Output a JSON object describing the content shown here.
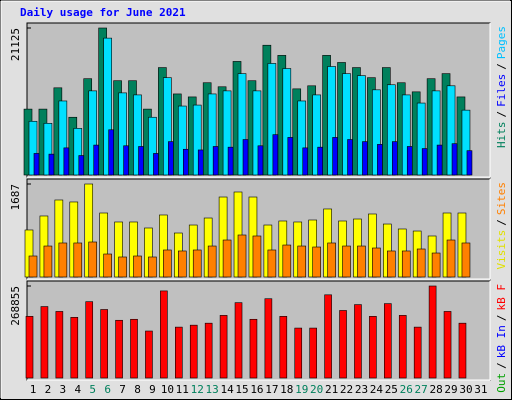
{
  "chart_data": {
    "type": "bar",
    "title": "Daily usage for June 2021",
    "categories": [
      "1",
      "2",
      "3",
      "4",
      "5",
      "6",
      "7",
      "8",
      "9",
      "10",
      "11",
      "12",
      "13",
      "14",
      "15",
      "16",
      "17",
      "18",
      "19",
      "20",
      "21",
      "22",
      "23",
      "24",
      "25",
      "26",
      "27",
      "28",
      "29",
      "30",
      "31"
    ],
    "category_colors": [
      "#000000",
      "#000000",
      "#000000",
      "#000000",
      "#00805c",
      "#00805c",
      "#000000",
      "#000000",
      "#000000",
      "#000000",
      "#000000",
      "#00805c",
      "#00805c",
      "#000000",
      "#000000",
      "#000000",
      "#000000",
      "#000000",
      "#00805c",
      "#00805c",
      "#000000",
      "#000000",
      "#000000",
      "#000000",
      "#000000",
      "#00805c",
      "#00805c",
      "#000000",
      "#000000",
      "#000000",
      "#000000"
    ],
    "panels": [
      {
        "ylim": [
          0,
          21125
        ],
        "yticks": [
          21125
        ],
        "legend": [
          {
            "text": "Pages",
            "color": "#00c0ff"
          },
          {
            "text": "/",
            "color": "#000000"
          },
          {
            "text": "Files",
            "color": "#0000ff"
          },
          {
            "text": "/",
            "color": "#000000"
          },
          {
            "text": "Hits",
            "color": "#00805c"
          }
        ],
        "series": [
          {
            "color": "#00805c",
            "values": [
              9470,
              9470,
              12530,
              8300,
              13840,
              21125,
              13550,
              13550,
              9470,
              15440,
              11650,
              11220,
              13260,
              12680,
              16320,
              13550,
              18650,
              17190,
              12380,
              12820,
              17190,
              16170,
              15440,
              13990,
              15440,
              13260,
              11950,
              13840,
              14570,
              11220,
              null
            ]
          },
          {
            "color": "#00e0ff",
            "values": [
              7720,
              7430,
              10640,
              6700,
              12090,
              19670,
              11800,
              11510,
              8300,
              13990,
              9910,
              10050,
              11650,
              12090,
              14570,
              12090,
              16030,
              15300,
              10640,
              11510,
              15590,
              14570,
              14280,
              12240,
              12970,
              11510,
              10340,
              12090,
              12820,
              9320,
              null
            ]
          },
          {
            "color": "#0000ff",
            "values": [
              3100,
              3000,
              3900,
              2800,
              4300,
              6500,
              4200,
              4100,
              3100,
              4800,
              3700,
              3600,
              4100,
              4000,
              5100,
              4200,
              5800,
              5400,
              3900,
              4000,
              5400,
              5100,
              4800,
              4400,
              4800,
              4100,
              3800,
              4300,
              4500,
              3500,
              null
            ]
          }
        ]
      },
      {
        "ylim": [
          0,
          1687
        ],
        "yticks": [
          1687
        ],
        "legend": [
          {
            "text": "Sites",
            "color": "#ff8000"
          },
          {
            "text": "/",
            "color": "#000000"
          },
          {
            "text": "Visits",
            "color": "#e0e000"
          }
        ],
        "series": [
          {
            "color": "#ffff00",
            "values": [
              853,
              1107,
              1397,
              1361,
              1687,
              1161,
              998,
              998,
              889,
              1125,
              798,
              943,
              1070,
              1451,
              1542,
              1451,
              943,
              1016,
              998,
              1034,
              1234,
              1016,
              1052,
              1143,
              961,
              871,
              834,
              744,
              1161,
              1161,
              null
            ]
          },
          {
            "color": "#ff8000",
            "values": [
              381,
              562,
              617,
              617,
              635,
              417,
              363,
              381,
              363,
              490,
              472,
              490,
              562,
              671,
              762,
              744,
              490,
              580,
              562,
              544,
              617,
              562,
              562,
              526,
              472,
              472,
              508,
              435,
              671,
              617,
              null
            ]
          }
        ]
      },
      {
        "ylim": [
          0,
          268855
        ],
        "yticks": [
          268855
        ],
        "legend": [
          {
            "text": "kB F",
            "color": "#ff0000"
          },
          {
            "text": "/",
            "color": "#000000"
          },
          {
            "text": "kB In",
            "color": "#0000ff"
          },
          {
            "text": "/",
            "color": "#000000"
          },
          {
            "text": "kB Out",
            "color": "#00a000"
          }
        ],
        "series": [
          {
            "color": "#ff0000",
            "values": [
              180200,
              208800,
              194500,
              177300,
              223100,
              200200,
              168700,
              171600,
              137300,
              254500,
              148700,
              154400,
              160200,
              183000,
              220200,
              171600,
              231700,
              180200,
              145900,
              145900,
              243100,
              197300,
              214500,
              180200,
              217400,
              183000,
              148700,
              268855,
              194500,
              160200,
              null
            ]
          }
        ]
      }
    ]
  }
}
